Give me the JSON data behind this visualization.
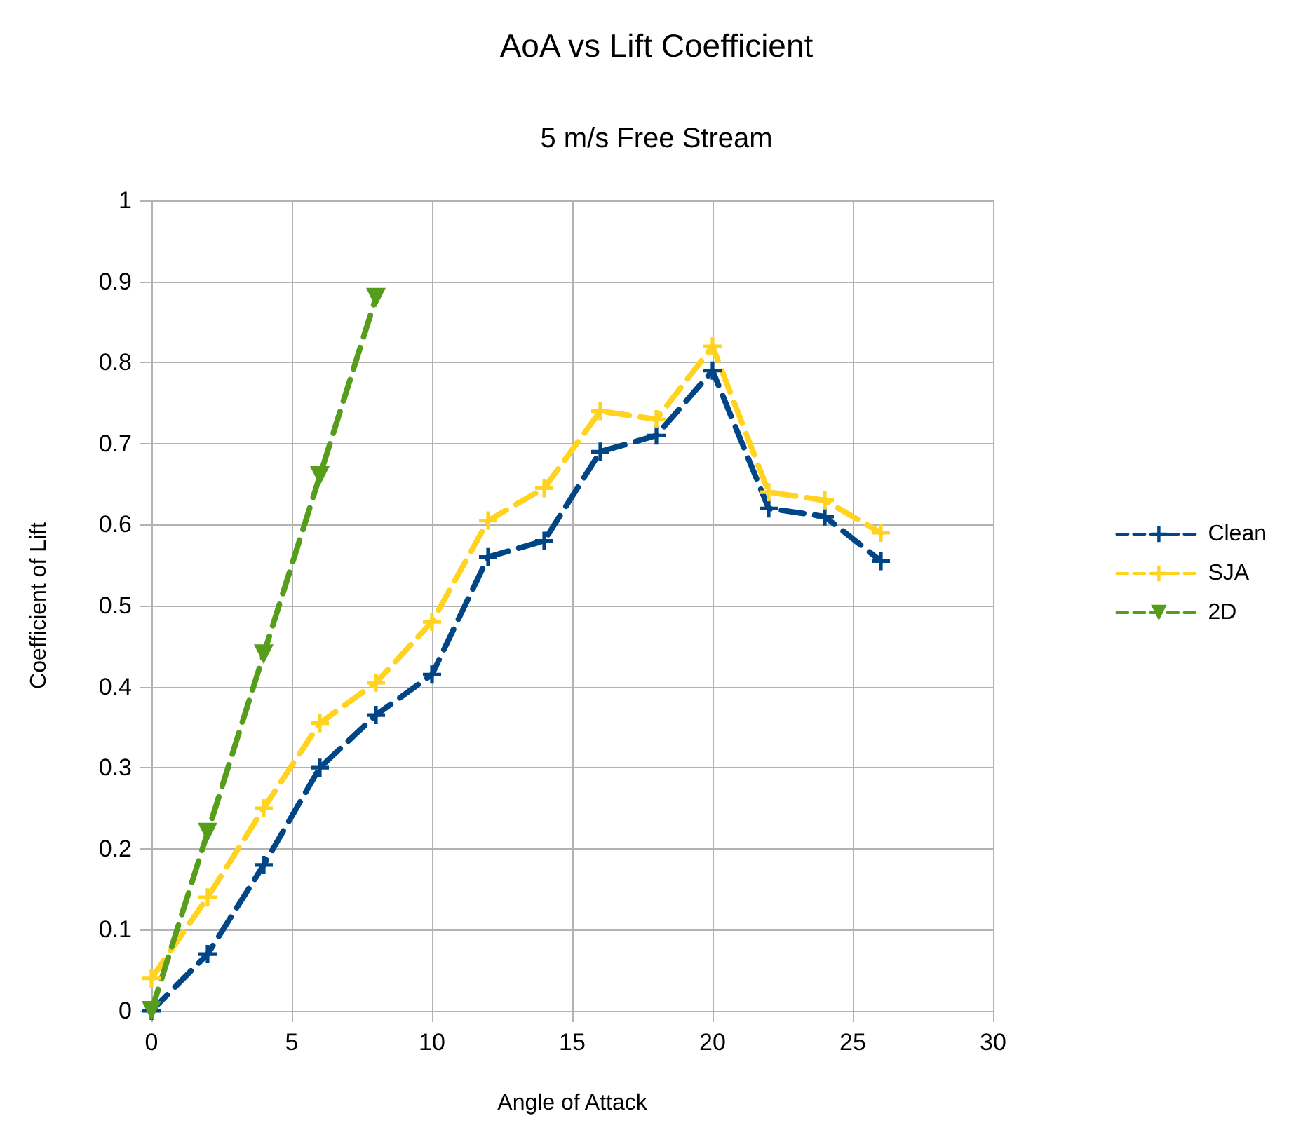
{
  "chart_data": {
    "type": "line",
    "title": "AoA vs Lift Coefficient",
    "subtitle": "5 m/s Free Stream",
    "xlabel": "Angle of Attack",
    "ylabel": "Coefficient of Lift",
    "x": [
      0,
      2,
      4,
      6,
      8,
      10,
      12,
      14,
      16,
      18,
      20,
      22,
      24,
      26
    ],
    "series": [
      {
        "name": "Clean",
        "color": "#004586",
        "marker": "cross",
        "values": [
          0,
          0.07,
          0.18,
          0.3,
          0.365,
          0.415,
          0.56,
          0.58,
          0.69,
          0.71,
          0.79,
          0.62,
          0.61,
          0.555
        ]
      },
      {
        "name": "SJA",
        "color": "#ffd320",
        "marker": "cross",
        "values": [
          0.04,
          0.14,
          0.25,
          0.355,
          0.405,
          0.48,
          0.605,
          0.645,
          0.74,
          0.73,
          0.82,
          0.64,
          0.63,
          0.59
        ]
      },
      {
        "name": "2D",
        "color": "#579d1c",
        "marker": "triangle",
        "x": [
          0,
          2,
          4,
          6,
          8
        ],
        "values": [
          0,
          0.22,
          0.44,
          0.66,
          0.88
        ]
      }
    ],
    "xlim": [
      0,
      30
    ],
    "xticks": [
      0,
      5,
      10,
      15,
      20,
      25,
      30
    ],
    "ylim": [
      0,
      1
    ],
    "yticks": [
      0,
      0.1,
      0.2,
      0.3,
      0.4,
      0.5,
      0.6,
      0.7,
      0.8,
      0.9,
      1
    ],
    "grid": true,
    "legend": "right",
    "line_style": "dashed"
  }
}
